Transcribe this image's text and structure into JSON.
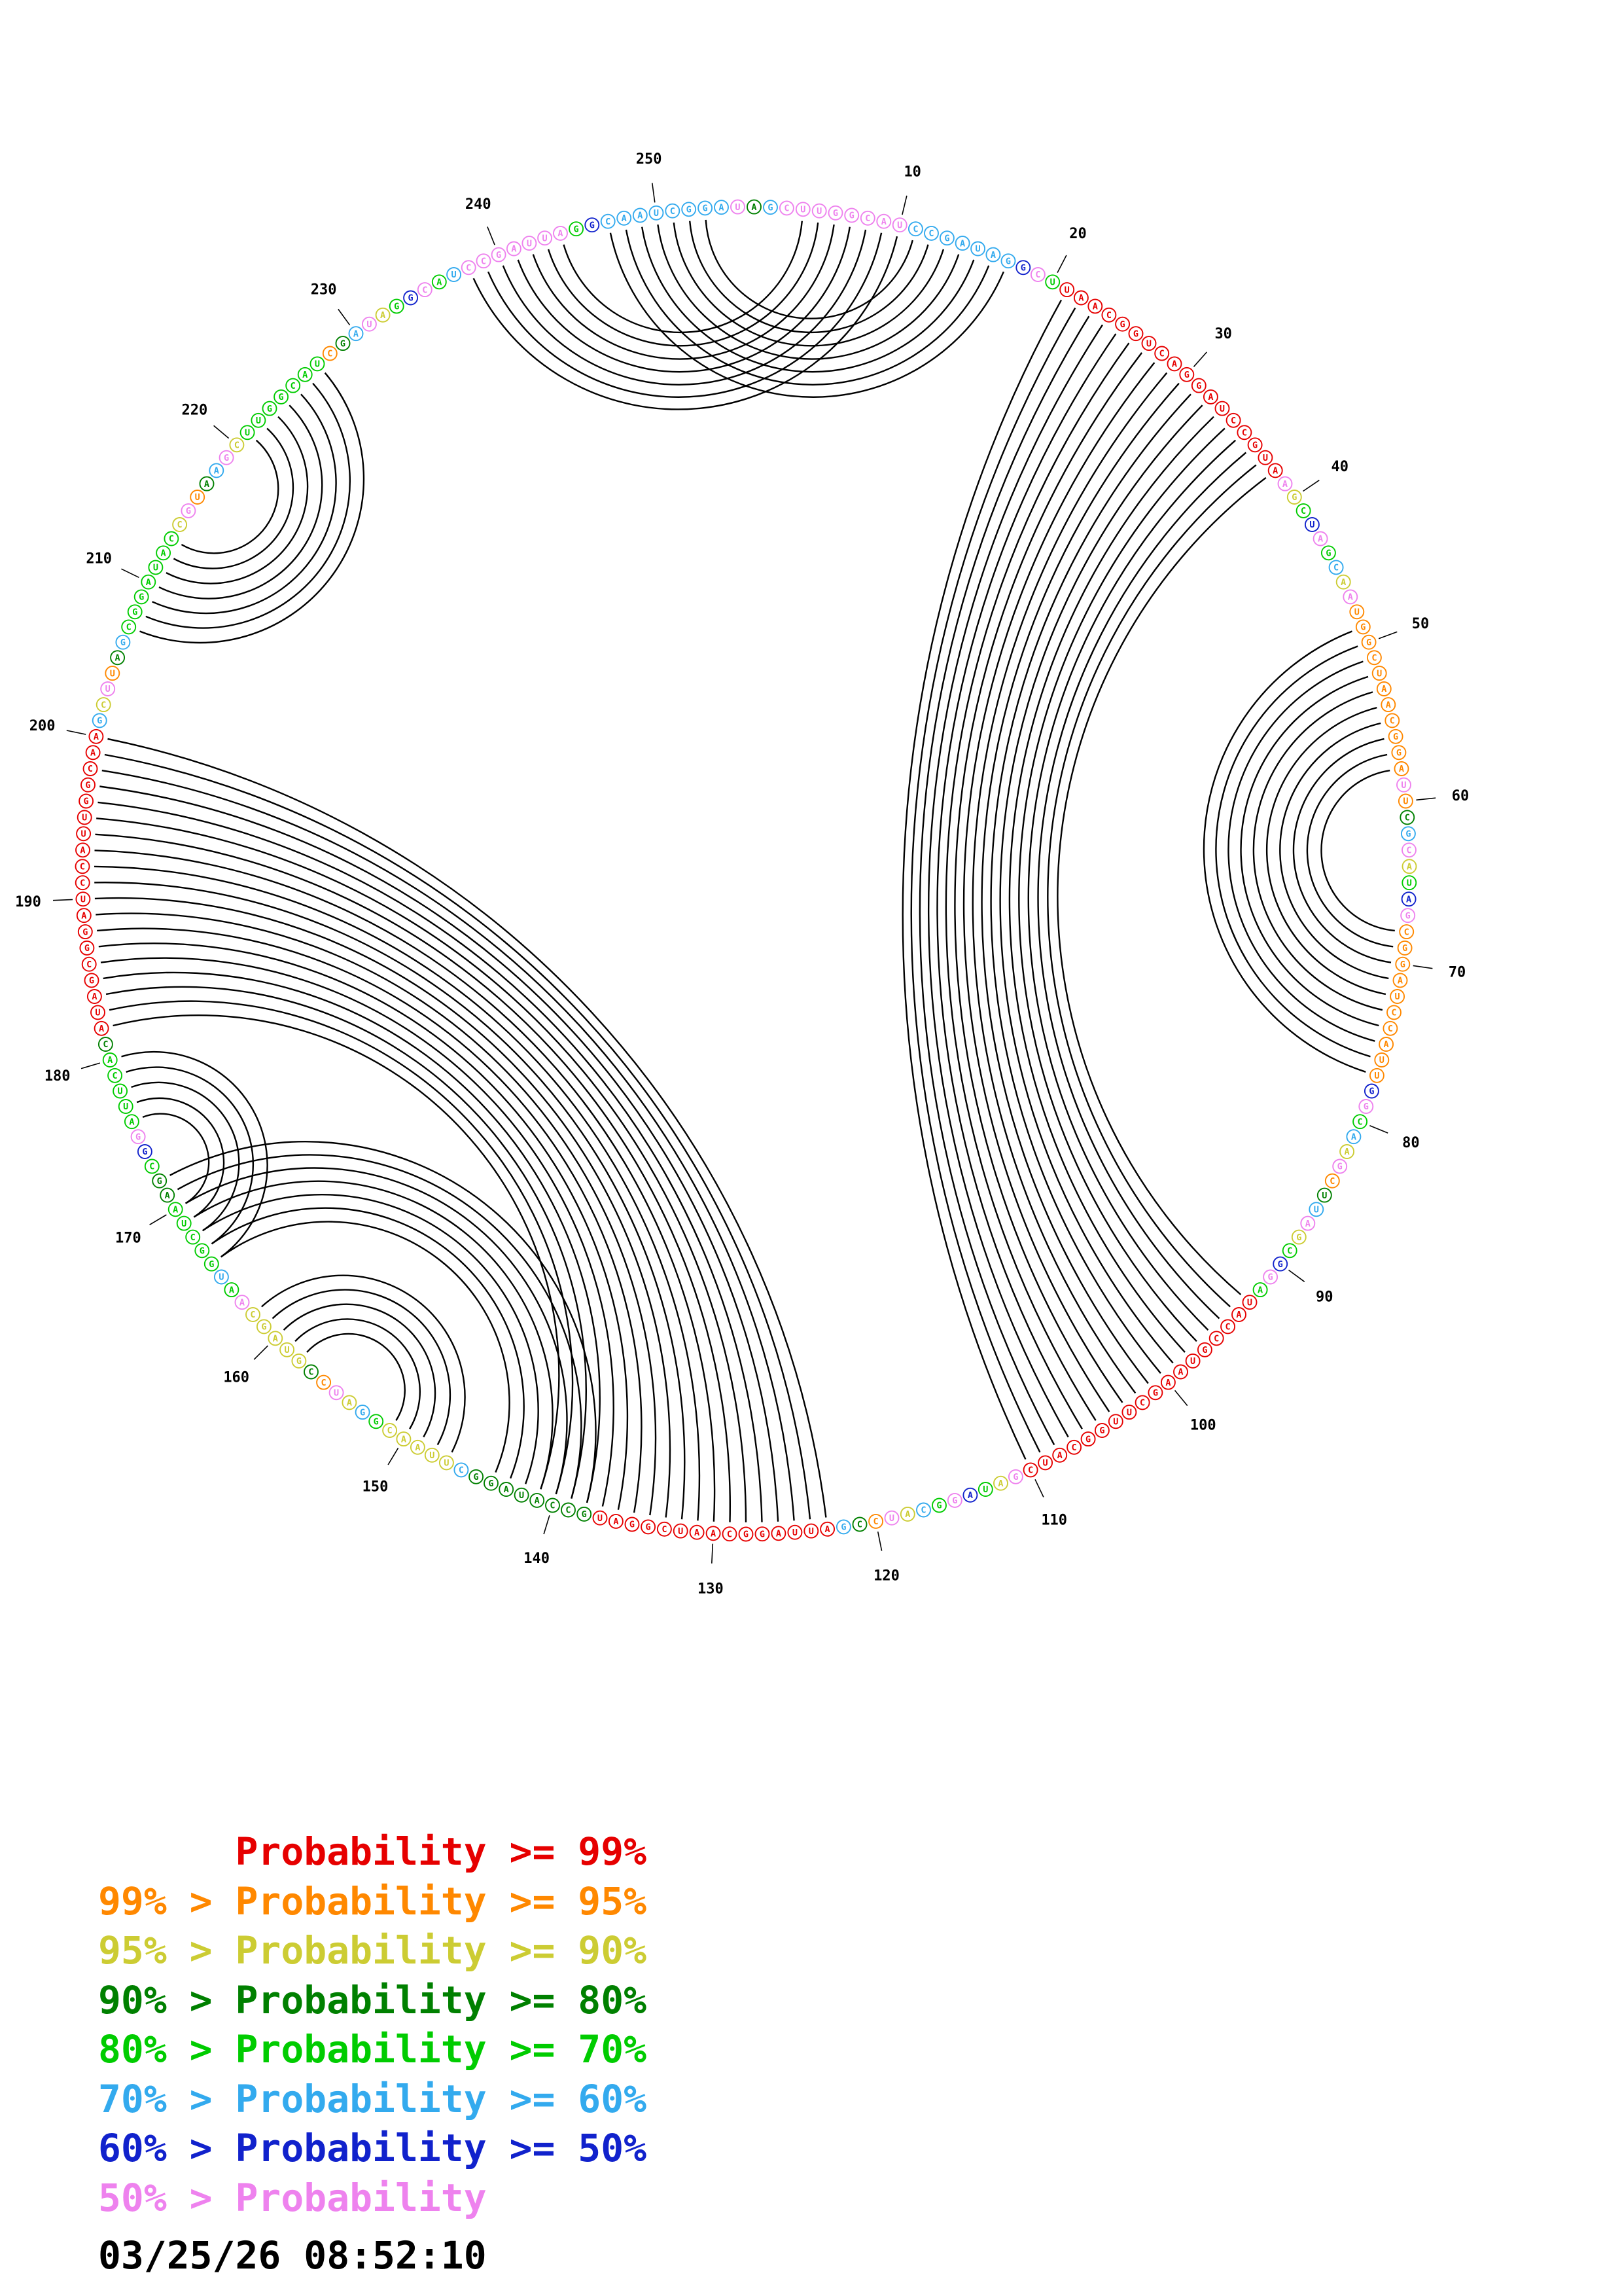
{
  "page": {
    "background": "#ffffff"
  },
  "chart_data": {
    "type": "circular-arc-plot",
    "description": "Base-pair probability circle plot: nucleotides arranged on a circle, black arcs join paired positions, base circles colored by pairing probability class",
    "sequence_length": 255,
    "tick_interval": 10,
    "tick_labels": [
      "10",
      "20",
      "30",
      "40",
      "50",
      "60",
      "70",
      "80",
      "90",
      "100",
      "110",
      "120",
      "130",
      "140",
      "150",
      "160",
      "170",
      "180",
      "190",
      "200",
      "210",
      "220",
      "230",
      "240",
      "250"
    ],
    "sequence": "AGCUUGGCAUCCGAUAGGCUUAACGGUCAGGAUCCGUAAGCUAGCAAUGGCUAACGGAUUCGCAUAGCGGAUCCAUUGGCAAGCUUAGCGGAUACCGUAAGCUUGGCAUCGAUAGGCAUCCGAUUAGGCAAUCGGAUGCCAUAGGCUUAACGGAUCCGUAGCAAUGGCUAAGCGGAUUCACAUAGCGGAUCCAUUGGCAAGCUUAGCGGAUACCGUAAGCUUGGCAUCGAUAGGCAUCCGAUUAGGCAAUCGGAU",
    "arc_color": "#000000",
    "helices": [
      {
        "i_start": 238,
        "i_end": 244,
        "j_start": 10,
        "j_end": 4,
        "prob_class": "lt50"
      },
      {
        "i_start": 247,
        "i_end": 253,
        "j_start": 17,
        "j_end": 11,
        "prob_class": "p60"
      },
      {
        "i_start": 207,
        "i_end": 213,
        "j_start": 227,
        "j_end": 221,
        "prob_class": "p70"
      },
      {
        "i_start": 21,
        "i_end": 38,
        "j_start": 110,
        "j_end": 93,
        "prob_class": "p99"
      },
      {
        "i_start": 49,
        "i_end": 58,
        "j_start": 77,
        "j_end": 68,
        "prob_class": "p95"
      },
      {
        "i_start": 123,
        "i_end": 141,
        "j_start": 200,
        "j_end": 182,
        "prob_class": "p99"
      },
      {
        "i_start": 147,
        "i_end": 151,
        "j_start": 162,
        "j_end": 158,
        "prob_class": "p90"
      },
      {
        "i_start": 138,
        "i_end": 144,
        "j_start": 172,
        "j_end": 166,
        "prob_class": "p80"
      },
      {
        "i_start": 166,
        "i_end": 170,
        "j_start": 180,
        "j_end": 176,
        "prob_class": "p70"
      }
    ],
    "palette": {
      "p99": "#e60000",
      "p95": "#ff8800",
      "p90": "#cccc33",
      "p80": "#008000",
      "p70": "#00cc00",
      "p60": "#33aaee",
      "p50": "#1122cc",
      "lt50": "#ee82ee"
    },
    "unpaired_color_cycle": [
      "lt50",
      "p70",
      "p60",
      "p90",
      "lt50",
      "p95",
      "p80",
      "p60",
      "lt50",
      "p90",
      "p70",
      "p50"
    ]
  },
  "legend": {
    "lines": [
      {
        "text": "      Probability >= 99%",
        "class": "p99"
      },
      {
        "text": "99% > Probability >= 95%",
        "class": "p95"
      },
      {
        "text": "95% > Probability >= 90%",
        "class": "p90"
      },
      {
        "text": "90% > Probability >= 80%",
        "class": "p80"
      },
      {
        "text": "80% > Probability >= 70%",
        "class": "p70"
      },
      {
        "text": "70% > Probability >= 60%",
        "class": "p60"
      },
      {
        "text": "60% > Probability >= 50%",
        "class": "p50"
      },
      {
        "text": "50% > Probability",
        "class": "lt50"
      }
    ],
    "timestamp": "03/25/26 08:52:10"
  }
}
